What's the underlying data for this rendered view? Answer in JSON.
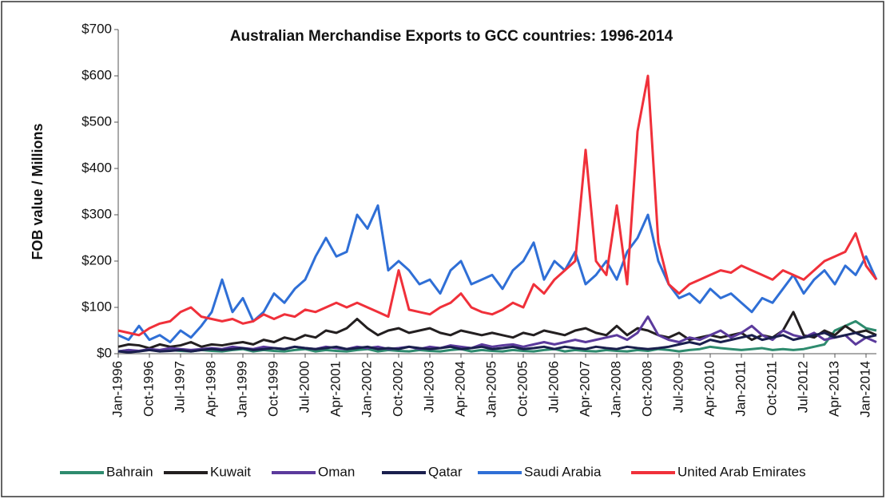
{
  "chart_data": {
    "type": "line",
    "title": "Australian Merchandise Exports to GCC countries: 1996-2014",
    "y_label": "FOB value / Millions",
    "categories": [
      "Jan-1996",
      null,
      null,
      "Oct-1996",
      null,
      null,
      "Jul-1997",
      null,
      null,
      "Apr-1998",
      null,
      null,
      "Jan-1999",
      null,
      null,
      "Oct-1999",
      null,
      null,
      "Jul-2000",
      null,
      null,
      "Apr-2001",
      null,
      null,
      "Jan-2002",
      null,
      null,
      "Oct-2002",
      null,
      null,
      "Jul-2003",
      null,
      null,
      "Apr-2004",
      null,
      null,
      "Jan-2005",
      null,
      null,
      "Oct-2005",
      null,
      null,
      "Jul-2006",
      null,
      null,
      "Apr-2007",
      null,
      null,
      "Jan-2008",
      null,
      null,
      "Oct-2008",
      null,
      null,
      "Jul-2009",
      null,
      null,
      "Apr-2010",
      null,
      null,
      "Jan-2011",
      null,
      null,
      "Oct-2011",
      null,
      null,
      "Jul-2012",
      null,
      null,
      "Apr-2013",
      null,
      null,
      "Jan-2014",
      null
    ],
    "ylim": [
      0,
      700
    ],
    "yticks": [
      {
        "value": 0,
        "label": "$0"
      },
      {
        "value": 100,
        "label": "$100"
      },
      {
        "value": 200,
        "label": "$200"
      },
      {
        "value": 300,
        "label": "$300"
      },
      {
        "value": 400,
        "label": "$400"
      },
      {
        "value": 500,
        "label": "$500"
      },
      {
        "value": 600,
        "label": "$600"
      },
      {
        "value": 700,
        "label": "$700"
      }
    ],
    "legend": "bottom",
    "series": [
      {
        "name": "Bahrain",
        "color": "#2e8b6e",
        "values": [
          5,
          8,
          5,
          10,
          5,
          8,
          6,
          5,
          8,
          6,
          5,
          8,
          10,
          5,
          8,
          6,
          5,
          8,
          10,
          5,
          8,
          6,
          5,
          8,
          10,
          5,
          8,
          6,
          5,
          8,
          6,
          5,
          8,
          10,
          5,
          8,
          6,
          5,
          8,
          6,
          5,
          8,
          10,
          5,
          8,
          6,
          5,
          8,
          6,
          5,
          8,
          6,
          10,
          8,
          5,
          8,
          10,
          15,
          12,
          10,
          8,
          10,
          12,
          8,
          10,
          8,
          10,
          15,
          20,
          50,
          60,
          70,
          55,
          50
        ]
      },
      {
        "name": "Kuwait",
        "color": "#231f20",
        "values": [
          15,
          20,
          18,
          12,
          20,
          15,
          18,
          25,
          15,
          20,
          18,
          22,
          25,
          20,
          30,
          25,
          35,
          30,
          40,
          35,
          50,
          45,
          55,
          75,
          55,
          40,
          50,
          55,
          45,
          50,
          55,
          45,
          40,
          50,
          45,
          40,
          45,
          40,
          35,
          45,
          40,
          50,
          45,
          40,
          50,
          55,
          45,
          40,
          60,
          40,
          55,
          50,
          40,
          35,
          45,
          30,
          35,
          40,
          35,
          40,
          45,
          30,
          40,
          35,
          50,
          90,
          40,
          35,
          50,
          40,
          60,
          45,
          50,
          40
        ]
      },
      {
        "name": "Oman",
        "color": "#5b3a9c",
        "values": [
          5,
          8,
          6,
          10,
          8,
          12,
          10,
          8,
          10,
          12,
          10,
          15,
          12,
          10,
          15,
          12,
          10,
          15,
          12,
          10,
          15,
          12,
          10,
          15,
          12,
          15,
          10,
          12,
          15,
          10,
          15,
          12,
          18,
          15,
          12,
          20,
          15,
          18,
          20,
          15,
          20,
          25,
          20,
          25,
          30,
          25,
          30,
          35,
          40,
          30,
          45,
          80,
          40,
          30,
          25,
          35,
          30,
          40,
          50,
          35,
          45,
          60,
          40,
          30,
          50,
          40,
          35,
          45,
          30,
          35,
          40,
          20,
          35,
          25
        ]
      },
      {
        "name": "Qatar",
        "color": "#1a1f4d",
        "values": [
          5,
          3,
          5,
          8,
          5,
          6,
          8,
          5,
          8,
          10,
          8,
          10,
          12,
          8,
          10,
          12,
          10,
          15,
          12,
          10,
          12,
          15,
          10,
          12,
          15,
          10,
          12,
          10,
          15,
          12,
          10,
          12,
          15,
          10,
          12,
          15,
          10,
          12,
          15,
          10,
          12,
          15,
          10,
          15,
          12,
          10,
          15,
          12,
          10,
          15,
          12,
          10,
          12,
          15,
          20,
          25,
          20,
          30,
          25,
          30,
          35,
          40,
          30,
          35,
          40,
          30,
          35,
          40,
          45,
          35,
          40,
          45,
          35,
          40
        ]
      },
      {
        "name": "Saudi Arabia",
        "color": "#2f6fd6",
        "values": [
          40,
          30,
          60,
          30,
          40,
          25,
          50,
          35,
          60,
          90,
          160,
          90,
          120,
          70,
          90,
          130,
          110,
          140,
          160,
          210,
          250,
          210,
          220,
          300,
          270,
          320,
          180,
          200,
          180,
          150,
          160,
          130,
          180,
          200,
          150,
          160,
          170,
          140,
          180,
          200,
          240,
          160,
          200,
          180,
          220,
          150,
          170,
          200,
          160,
          220,
          250,
          300,
          200,
          150,
          120,
          130,
          110,
          140,
          120,
          130,
          110,
          90,
          120,
          110,
          140,
          170,
          130,
          160,
          180,
          150,
          190,
          170,
          210,
          160
        ]
      },
      {
        "name": "United Arab Emirates",
        "color": "#f0303a",
        "values": [
          50,
          45,
          40,
          55,
          65,
          70,
          90,
          100,
          80,
          75,
          70,
          75,
          65,
          70,
          85,
          75,
          85,
          80,
          95,
          90,
          100,
          110,
          100,
          110,
          100,
          90,
          80,
          180,
          95,
          90,
          85,
          100,
          110,
          130,
          100,
          90,
          85,
          95,
          110,
          100,
          150,
          130,
          160,
          180,
          200,
          440,
          200,
          170,
          320,
          150,
          480,
          600,
          240,
          150,
          130,
          150,
          160,
          170,
          180,
          175,
          190,
          180,
          170,
          160,
          180,
          170,
          160,
          180,
          200,
          210,
          220,
          260,
          190,
          160
        ]
      }
    ]
  }
}
